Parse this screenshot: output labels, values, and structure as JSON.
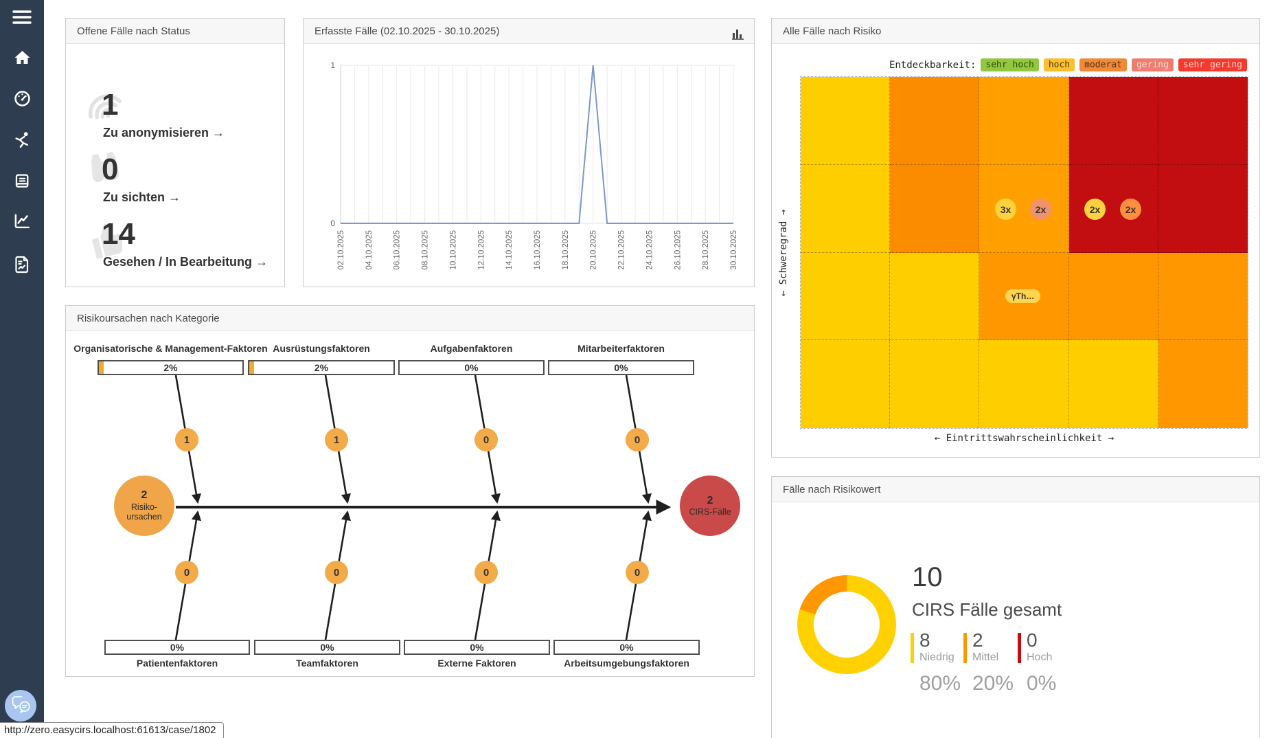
{
  "colors": {
    "sidebar_bg": "#2e3d4f",
    "card_header_bg": "#f7f7f7",
    "line_color": "#7b98cc",
    "fab_bg": "#a8c6f0",
    "fishbone_orange": "#f0a548",
    "fishbone_red": "#ca4a49"
  },
  "sidebar": {
    "items": [
      {
        "name": "menu"
      },
      {
        "name": "home"
      },
      {
        "name": "dashboard-gauge"
      },
      {
        "name": "incident-person"
      },
      {
        "name": "logbook"
      },
      {
        "name": "statistics-chart"
      },
      {
        "name": "report-file"
      }
    ]
  },
  "status_card": {
    "title": "Offene Fälle nach Status",
    "items": [
      {
        "icon": "fingerprint",
        "count": "1",
        "label": "Zu anonymisieren →"
      },
      {
        "icon": "binoculars",
        "count": "0",
        "label": "Zu sichten →"
      },
      {
        "icon": "thumbs-up",
        "count": "14",
        "label": "Gesehen / In Bearbeitung →"
      }
    ]
  },
  "cases_card": {
    "title": "Erfasste Fälle (02.10.2025 - 30.10.2025)"
  },
  "risk_card": {
    "title": "Alle Fälle nach Risiko",
    "legend_label": "Entdeckbarkeit:",
    "legend": [
      {
        "label": "sehr hoch",
        "bg": "#92c83e",
        "fg": "#33470f"
      },
      {
        "label": "hoch",
        "bg": "#fcc02e",
        "fg": "#4a3a0a"
      },
      {
        "label": "moderat",
        "bg": "#f08a38",
        "fg": "#553011"
      },
      {
        "label": "gering",
        "bg": "#ee7e72",
        "fg": "#fbd9d4"
      },
      {
        "label": "sehr gering",
        "bg": "#f23b2e",
        "fg": "#fbd0cb"
      }
    ]
  },
  "fishbone": {
    "title": "Risikoursachen nach Kategorie",
    "top": [
      {
        "label": "Organisatorische & Management-Faktoren",
        "percent": "2%",
        "count": "1"
      },
      {
        "label": "Ausrüstungsfaktoren",
        "percent": "2%",
        "count": "1"
      },
      {
        "label": "Aufgabenfaktoren",
        "percent": "0%",
        "count": "0"
      },
      {
        "label": "Mitarbeiterfaktoren",
        "percent": "0%",
        "count": "0"
      }
    ],
    "bottom": [
      {
        "label": "Patientenfaktoren",
        "percent": "0%",
        "count": "0"
      },
      {
        "label": "Teamfaktoren",
        "percent": "0%",
        "count": "0"
      },
      {
        "label": "Externe Faktoren",
        "percent": "0%",
        "count": "0"
      },
      {
        "label": "Arbeitsumgebungsfaktoren",
        "percent": "0%",
        "count": "0"
      }
    ],
    "left_node": {
      "value": "2",
      "line1": "Risiko-",
      "line2": "ursachen"
    },
    "right_node": {
      "value": "2",
      "label": "CIRS-Fälle"
    }
  },
  "risk_value_card": {
    "title": "Fälle nach Risikowert",
    "total": "10",
    "subtitle": "CIRS Fälle gesamt",
    "legend": [
      {
        "count": "8",
        "label": "Niedrig",
        "percent": "80%",
        "color": "#ffd100"
      },
      {
        "count": "2",
        "label": "Mittel",
        "percent": "20%",
        "color": "#ff9800"
      },
      {
        "count": "0",
        "label": "Hoch",
        "percent": "0%",
        "color": "#c20d11"
      }
    ]
  },
  "statusbar": {
    "url": "http://zero.easycirs.localhost:61613/case/1802"
  },
  "chart_data": [
    {
      "type": "line",
      "title": "Erfasste Fälle (02.10.2025 - 30.10.2025)",
      "x": [
        "02.10.2025",
        "03.10.2025",
        "04.10.2025",
        "05.10.2025",
        "06.10.2025",
        "07.10.2025",
        "08.10.2025",
        "09.10.2025",
        "10.10.2025",
        "11.10.2025",
        "12.10.2025",
        "13.10.2025",
        "14.10.2025",
        "15.10.2025",
        "16.10.2025",
        "17.10.2025",
        "18.10.2025",
        "19.10.2025",
        "20.10.2025",
        "21.10.2025",
        "22.10.2025",
        "23.10.2025",
        "24.10.2025",
        "25.10.2025",
        "26.10.2025",
        "27.10.2025",
        "28.10.2025",
        "29.10.2025",
        "30.10.2025"
      ],
      "values": [
        0,
        0,
        0,
        0,
        0,
        0,
        0,
        0,
        0,
        0,
        0,
        0,
        0,
        0,
        0,
        0,
        0,
        0,
        1,
        0,
        0,
        0,
        0,
        0,
        0,
        0,
        0,
        0,
        0
      ],
      "ylim": [
        0,
        1
      ],
      "yticks": [
        "0",
        "1"
      ],
      "tick_every": 2,
      "grid": true,
      "line_color": "#7b98cc"
    },
    {
      "type": "heatmap",
      "title": "Alle Fälle nach Risiko",
      "x_axis_label": "← Eintrittswahrscheinlichkeit →",
      "y_axis_label": "← Schweregrad →",
      "cols": 5,
      "rows": 4,
      "palette": {
        "y": "#ffce00",
        "od": "#fb8c00",
        "ol": "#ffa000",
        "o": "#ff9800",
        "r": "#c20d11"
      },
      "grid": [
        [
          "y",
          "od",
          "ol",
          "r",
          "r"
        ],
        [
          "y",
          "od",
          "ol",
          "r",
          "r"
        ],
        [
          "y",
          "y",
          "o",
          "o",
          "o"
        ],
        [
          "y",
          "y",
          "y",
          "y",
          "o"
        ]
      ],
      "markers": [
        {
          "label": "3x",
          "row": 2,
          "col": 3,
          "color": "#ffd23e"
        },
        {
          "label": "2x",
          "row": 2,
          "col": 3,
          "color": "#f0926e"
        },
        {
          "label": "2x",
          "row": 2,
          "col": 4,
          "color": "#ffd23e"
        },
        {
          "label": "2x",
          "row": 2,
          "col": 4,
          "color": "#ff8f3e"
        }
      ],
      "case_label": {
        "text": "γTh…",
        "row": 3,
        "col": 3,
        "color": "#ffd54f"
      }
    },
    {
      "type": "pie",
      "title": "Fälle nach Risikowert",
      "labels": [
        "Niedrig",
        "Mittel",
        "Hoch"
      ],
      "values": [
        8,
        2,
        0
      ],
      "percents": [
        "80%",
        "20%",
        "0%"
      ],
      "colors": [
        "#ffd100",
        "#ff9800",
        "#c20d11"
      ],
      "total": 10,
      "donut": true,
      "start": "top",
      "direction": "clockwise"
    }
  ]
}
